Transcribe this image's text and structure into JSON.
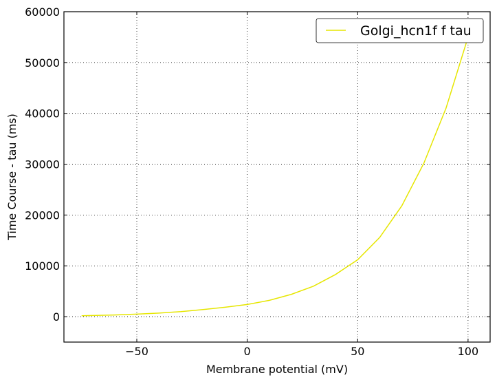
{
  "chart_data": {
    "type": "line",
    "title": "",
    "xlabel": "Membrane potential (mV)",
    "ylabel": "Time Course - tau (ms)",
    "xlim": [
      -83,
      110
    ],
    "ylim": [
      -5000,
      60000
    ],
    "xticks": [
      -50,
      0,
      50,
      100
    ],
    "xtick_labels": [
      "−50",
      "0",
      "50",
      "100"
    ],
    "yticks": [
      0,
      10000,
      20000,
      30000,
      40000,
      50000,
      60000
    ],
    "ytick_labels": [
      "0",
      "10000",
      "20000",
      "30000",
      "40000",
      "50000",
      "60000"
    ],
    "grid": true,
    "legend_position": "top-right",
    "series": [
      {
        "name": "Golgi_hcn1f f tau",
        "color": "#e6e600",
        "x": [
          -75,
          -70,
          -60,
          -50,
          -40,
          -30,
          -20,
          -10,
          0,
          10,
          20,
          30,
          40,
          50,
          60,
          70,
          80,
          90,
          100
        ],
        "y": [
          180,
          230,
          340,
          500,
          700,
          1000,
          1400,
          1850,
          2400,
          3200,
          4400,
          6000,
          8300,
          11200,
          15600,
          21800,
          30200,
          41000,
          55000
        ]
      }
    ]
  }
}
